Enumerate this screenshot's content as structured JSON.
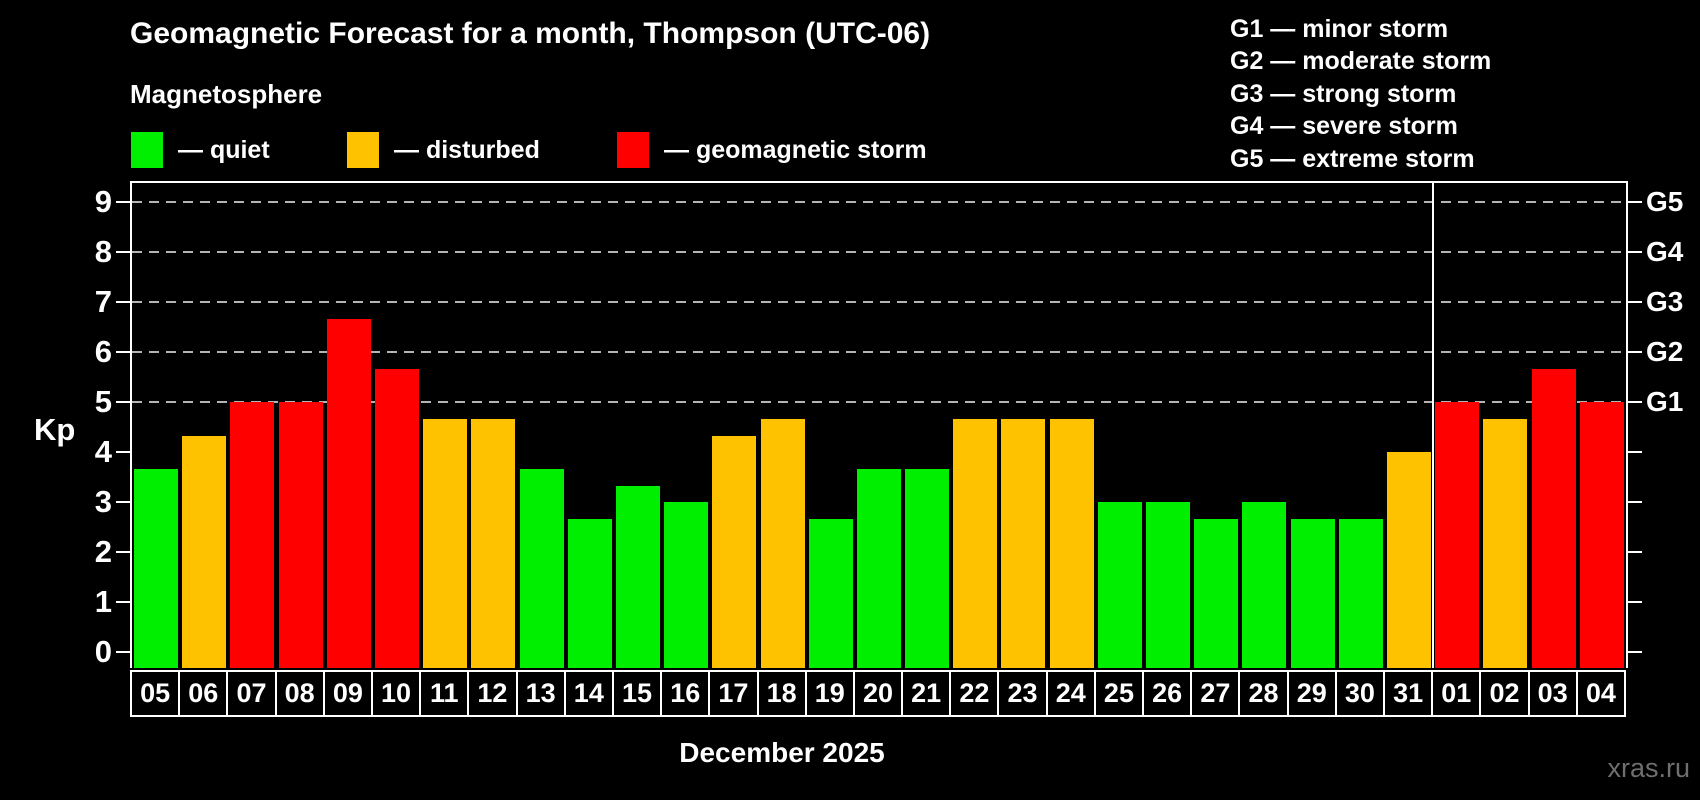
{
  "title": "Geomagnetic Forecast for a month, Thompson (UTC-06)",
  "subtitle": "Magnetosphere",
  "legend": {
    "quiet": {
      "label": "— quiet",
      "color": "#00ee00"
    },
    "disturbed": {
      "label": "— disturbed",
      "color": "#fec200"
    },
    "storm": {
      "label": "— geomagnetic storm",
      "color": "#fe0000"
    }
  },
  "g_scale_legend": [
    "G1 — minor storm",
    "G2 — moderate storm",
    "G3 — strong storm",
    "G4 — severe storm",
    "G5 — extreme storm"
  ],
  "watermark": "xras.ru",
  "chart_data": {
    "type": "bar",
    "title": "Geomagnetic Forecast for a month, Thompson (UTC-06)",
    "ylabel": "Kp",
    "month_label": "December 2025",
    "ylim": [
      0,
      9
    ],
    "yticks": [
      0,
      1,
      2,
      3,
      4,
      5,
      6,
      7,
      8,
      9
    ],
    "gridlines_at": [
      5,
      6,
      7,
      8,
      9
    ],
    "grid": "dashed-horizontal",
    "right_axis": {
      "labels": [
        "G1",
        "G2",
        "G3",
        "G4",
        "G5"
      ],
      "kp_values": [
        5,
        6,
        7,
        8,
        9
      ]
    },
    "categories": [
      "05",
      "06",
      "07",
      "08",
      "09",
      "10",
      "11",
      "12",
      "13",
      "14",
      "15",
      "16",
      "17",
      "18",
      "19",
      "20",
      "21",
      "22",
      "23",
      "24",
      "25",
      "26",
      "27",
      "28",
      "29",
      "30",
      "31",
      "01",
      "02",
      "03",
      "04"
    ],
    "values": [
      3.67,
      4.33,
      5,
      5,
      6.67,
      5.67,
      4.67,
      4.67,
      3.67,
      2.67,
      3.33,
      3,
      4.33,
      4.67,
      2.67,
      3.67,
      3.67,
      4.67,
      4.67,
      4.67,
      3,
      3,
      2.67,
      3,
      2.67,
      2.67,
      4,
      5,
      4.67,
      5.67,
      5
    ],
    "statuses": [
      "quiet",
      "disturbed",
      "storm",
      "storm",
      "storm",
      "storm",
      "disturbed",
      "disturbed",
      "quiet",
      "quiet",
      "quiet",
      "quiet",
      "disturbed",
      "disturbed",
      "quiet",
      "quiet",
      "quiet",
      "disturbed",
      "disturbed",
      "disturbed",
      "quiet",
      "quiet",
      "quiet",
      "quiet",
      "quiet",
      "quiet",
      "disturbed",
      "storm",
      "disturbed",
      "storm",
      "storm"
    ],
    "separator_before_index": 27
  }
}
